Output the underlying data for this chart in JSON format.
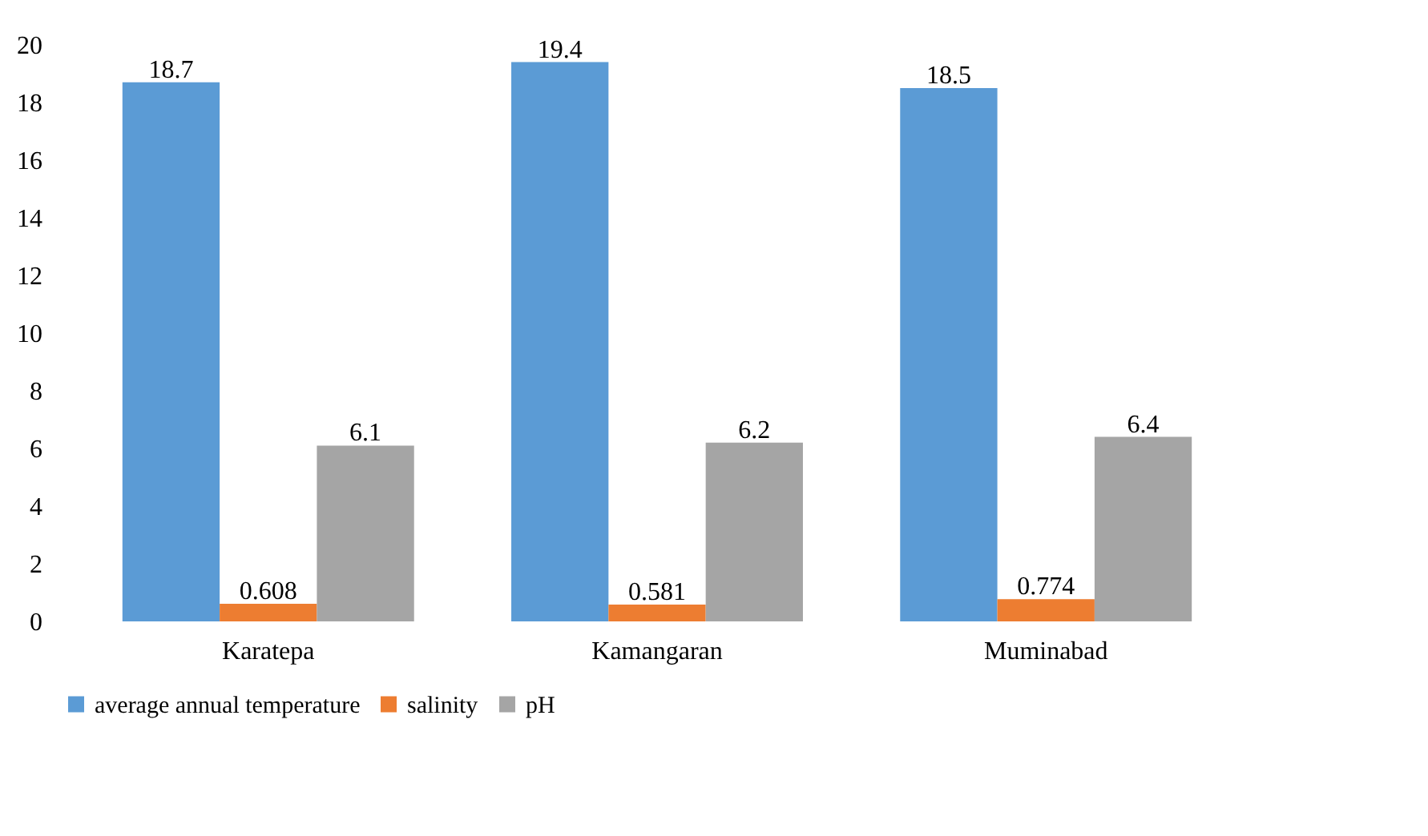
{
  "chart_data": {
    "type": "bar",
    "categories": [
      "Karatepa",
      "Kamangaran",
      "Muminabad"
    ],
    "series": [
      {
        "name": "average annual temperature",
        "color": "#5b9bd5",
        "values": [
          18.7,
          19.4,
          18.5
        ]
      },
      {
        "name": "salinity",
        "color": "#ed7d31",
        "values": [
          0.608,
          0.581,
          0.774
        ]
      },
      {
        "name": "pH",
        "color": "#a5a5a5",
        "values": [
          6.1,
          6.2,
          6.4
        ]
      }
    ],
    "ylim": [
      0,
      20
    ],
    "yticks": [
      0,
      2,
      4,
      6,
      8,
      10,
      12,
      14,
      16,
      18,
      20
    ],
    "grid": false,
    "legend": "bottom",
    "data_labels": true
  }
}
